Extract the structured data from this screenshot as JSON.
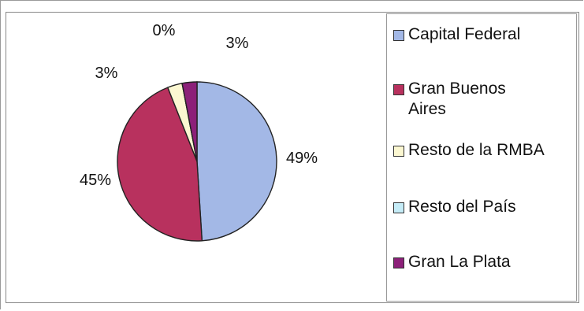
{
  "chart_data": {
    "type": "pie",
    "categories": [
      "Capital Federal",
      "Gran Buenos Aires",
      "Resto de la RMBA",
      "Resto del País",
      "Gran La Plata"
    ],
    "values": [
      49,
      45,
      3,
      0,
      3
    ],
    "data_labels": [
      "49%",
      "45%",
      "3%",
      "0%",
      "3%"
    ],
    "colors": [
      "#a3b8e6",
      "#b8315e",
      "#fbf7d1",
      "#c5ecf7",
      "#8c2079"
    ],
    "legend_position": "right"
  }
}
